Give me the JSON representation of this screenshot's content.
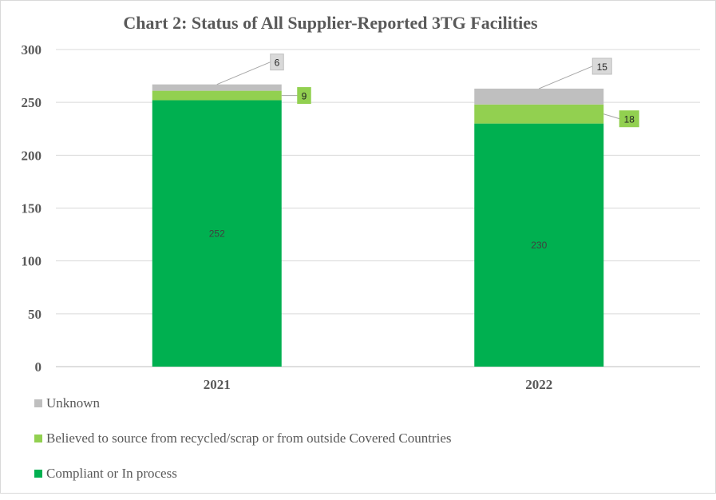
{
  "chart_data": {
    "type": "bar",
    "stacked": true,
    "title": "Chart 2: Status of All Supplier-Reported 3TG Facilities",
    "xlabel": "",
    "ylabel": "",
    "categories": [
      "2021",
      "2022"
    ],
    "ylim": [
      0,
      300
    ],
    "yticks": [
      "0",
      "50",
      "100",
      "150",
      "200",
      "250",
      "300"
    ],
    "grid": true,
    "legend_position": "bottom-left",
    "series": [
      {
        "name": "Compliant or In process",
        "values": [
          252,
          230
        ],
        "color": "#00b050",
        "labels": [
          "252",
          "230"
        ]
      },
      {
        "name": "Believed to source from recycled/scrap or from outside Covered Countries",
        "values": [
          9,
          18
        ],
        "color": "#92d050",
        "labels": [
          "9",
          "18"
        ]
      },
      {
        "name": "Unknown",
        "values": [
          6,
          15
        ],
        "color": "#bfbfbf",
        "labels": [
          "6",
          "15"
        ]
      }
    ],
    "legend_order": [
      "Unknown",
      "Believed to source from recycled/scrap or from outside Covered Countries",
      "Compliant or In process"
    ]
  }
}
